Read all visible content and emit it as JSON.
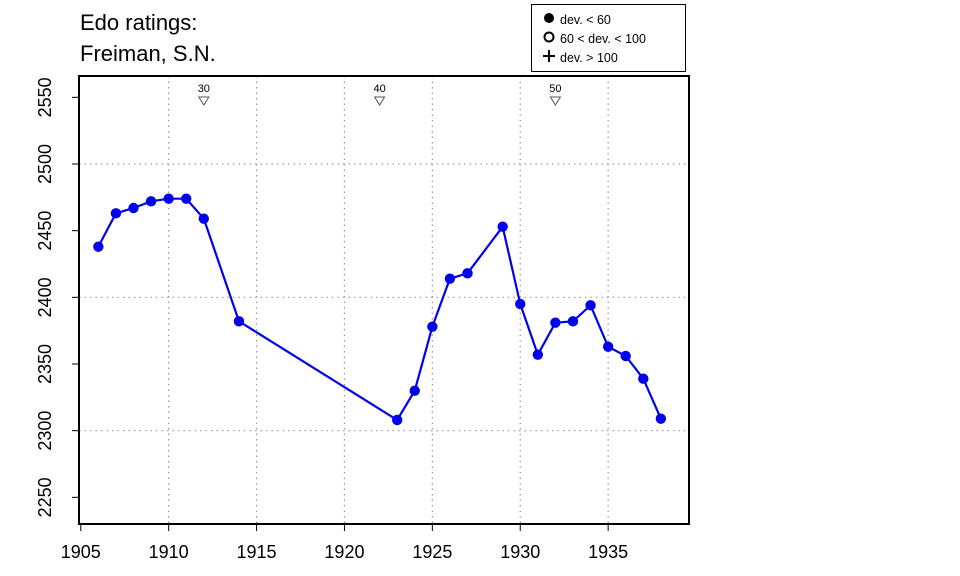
{
  "title_lines": [
    "Edo ratings:",
    "Freiman, S.N."
  ],
  "legend": {
    "items": [
      {
        "symbol": "filled-circle",
        "label": "dev. < 60"
      },
      {
        "symbol": "open-circle",
        "label": "60 < dev. < 100"
      },
      {
        "symbol": "plus",
        "label": "dev. > 100"
      }
    ]
  },
  "colors": {
    "series": "#0000ee",
    "axis": "#000000",
    "grid": "#999999",
    "marker_outline": "#555555"
  },
  "chart_data": {
    "type": "line",
    "title": "Edo ratings: Freiman, S.N.",
    "xlabel": "",
    "ylabel": "",
    "xlim": [
      1904.9,
      1939.6
    ],
    "ylim": [
      2230,
      2566
    ],
    "xticks": [
      1905,
      1910,
      1915,
      1920,
      1925,
      1930,
      1935
    ],
    "yticks": [
      2250,
      2300,
      2350,
      2400,
      2450,
      2500,
      2550
    ],
    "xgrid": [
      1910,
      1915,
      1920,
      1925,
      1930,
      1935
    ],
    "ygrid": [
      2300,
      2400,
      2500
    ],
    "grid": "dotted",
    "legend_position": "top-right",
    "series": [
      {
        "marker": "filled-circle",
        "x": [
          1906,
          1907,
          1908,
          1909,
          1910,
          1911,
          1912,
          1914,
          1923,
          1924,
          1925,
          1926,
          1927,
          1929,
          1930,
          1931,
          1932,
          1933,
          1934,
          1935,
          1936,
          1937,
          1938
        ],
        "y": [
          2438,
          2463,
          2467,
          2472,
          2474,
          2474,
          2459,
          2382,
          2308,
          2330,
          2378,
          2414,
          2418,
          2453,
          2395,
          2357,
          2381,
          2382,
          2394,
          2363,
          2356,
          2339,
          2309
        ]
      }
    ],
    "annotations": [
      {
        "x": 1912,
        "label": "30",
        "marker": "down-triangle"
      },
      {
        "x": 1922,
        "label": "40",
        "marker": "down-triangle"
      },
      {
        "x": 1932,
        "label": "50",
        "marker": "down-triangle"
      }
    ]
  }
}
